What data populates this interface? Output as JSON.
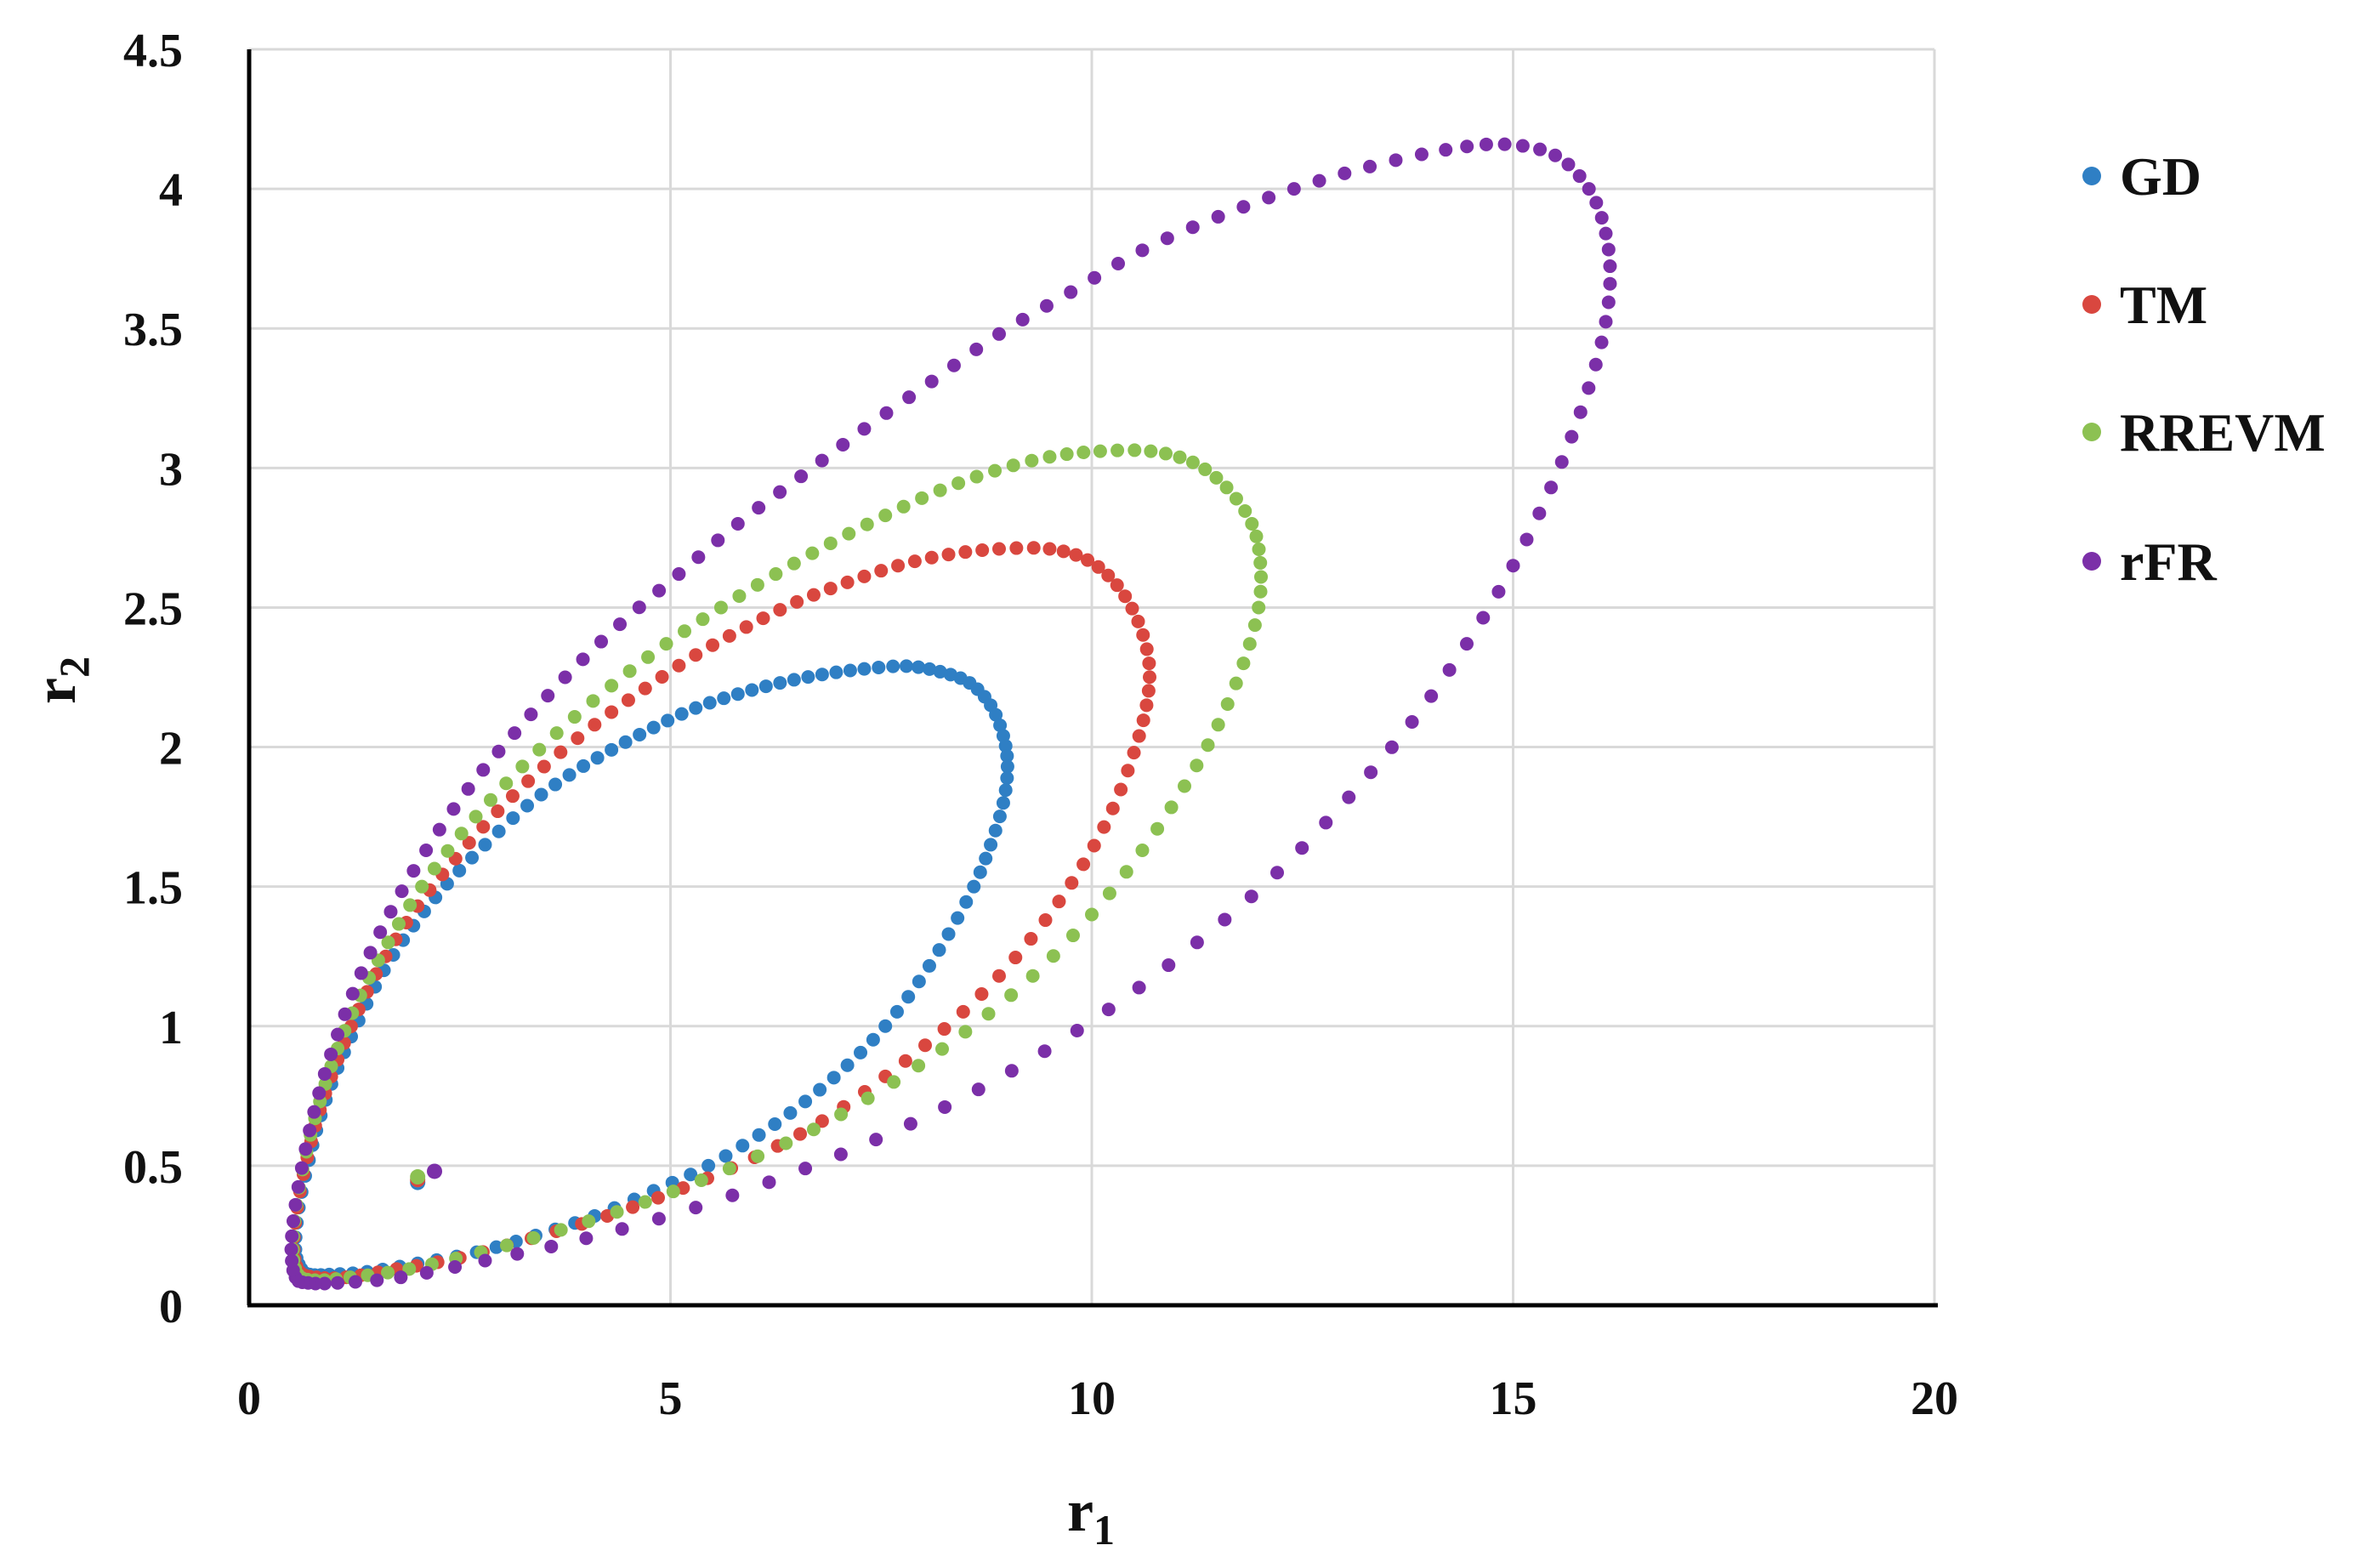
{
  "chart_data": {
    "type": "scatter",
    "title": "",
    "xlabel": {
      "main": "r",
      "sub": "1"
    },
    "ylabel": {
      "main": "r",
      "sub": "2"
    },
    "xlim": [
      0,
      20
    ],
    "ylim": [
      0,
      4.5
    ],
    "xticks": [
      "0",
      "5",
      "10",
      "15",
      "20"
    ],
    "yticks": [
      "0",
      "0.5",
      "1",
      "1.5",
      "2",
      "2.5",
      "3",
      "3.5",
      "4",
      "4.5"
    ],
    "grid": true,
    "legend_position": "right",
    "series": [
      {
        "name": "GD",
        "color": "#2f7fc4",
        "extra_point": [
          2.0,
          0.44
        ],
        "points": [
          [
            0.62,
            0.13
          ],
          [
            0.55,
            0.2
          ],
          [
            0.59,
            0.35
          ],
          [
            0.71,
            0.52
          ],
          [
            0.85,
            0.68
          ],
          [
            1.05,
            0.85
          ],
          [
            1.3,
            1.02
          ],
          [
            1.6,
            1.2
          ],
          [
            1.95,
            1.36
          ],
          [
            2.35,
            1.51
          ],
          [
            2.8,
            1.65
          ],
          [
            3.3,
            1.79
          ],
          [
            3.8,
            1.9
          ],
          [
            4.3,
            1.99
          ],
          [
            4.8,
            2.07
          ],
          [
            5.3,
            2.14
          ],
          [
            5.8,
            2.19
          ],
          [
            6.3,
            2.23
          ],
          [
            6.8,
            2.26
          ],
          [
            7.3,
            2.28
          ],
          [
            7.8,
            2.29
          ],
          [
            8.2,
            2.27
          ],
          [
            8.55,
            2.23
          ],
          [
            8.8,
            2.15
          ],
          [
            8.95,
            2.04
          ],
          [
            9.0,
            1.93
          ],
          [
            8.95,
            1.8
          ],
          [
            8.8,
            1.65
          ],
          [
            8.6,
            1.5
          ],
          [
            8.3,
            1.33
          ],
          [
            7.95,
            1.16
          ],
          [
            7.55,
            1.0
          ],
          [
            7.1,
            0.86
          ],
          [
            6.6,
            0.73
          ],
          [
            6.05,
            0.61
          ],
          [
            5.45,
            0.5
          ],
          [
            4.8,
            0.41
          ],
          [
            4.1,
            0.32
          ],
          [
            3.4,
            0.25
          ],
          [
            2.7,
            0.19
          ],
          [
            2.0,
            0.15
          ],
          [
            1.4,
            0.12
          ],
          [
            0.95,
            0.11
          ],
          [
            0.72,
            0.11
          ]
        ]
      },
      {
        "name": "TM",
        "color": "#d9473f",
        "extra_point": [
          2.0,
          0.45
        ],
        "points": [
          [
            0.6,
            0.12
          ],
          [
            0.53,
            0.2
          ],
          [
            0.57,
            0.35
          ],
          [
            0.69,
            0.53
          ],
          [
            0.84,
            0.7
          ],
          [
            1.05,
            0.88
          ],
          [
            1.3,
            1.06
          ],
          [
            1.62,
            1.25
          ],
          [
            2.0,
            1.43
          ],
          [
            2.45,
            1.6
          ],
          [
            2.95,
            1.77
          ],
          [
            3.5,
            1.93
          ],
          [
            4.1,
            2.08
          ],
          [
            4.7,
            2.21
          ],
          [
            5.3,
            2.33
          ],
          [
            5.9,
            2.43
          ],
          [
            6.5,
            2.52
          ],
          [
            7.1,
            2.59
          ],
          [
            7.7,
            2.65
          ],
          [
            8.3,
            2.69
          ],
          [
            8.9,
            2.71
          ],
          [
            9.5,
            2.71
          ],
          [
            9.95,
            2.67
          ],
          [
            10.3,
            2.58
          ],
          [
            10.55,
            2.45
          ],
          [
            10.68,
            2.3
          ],
          [
            10.65,
            2.15
          ],
          [
            10.5,
            1.98
          ],
          [
            10.25,
            1.78
          ],
          [
            9.9,
            1.58
          ],
          [
            9.45,
            1.38
          ],
          [
            8.9,
            1.18
          ],
          [
            8.25,
            0.99
          ],
          [
            7.55,
            0.82
          ],
          [
            6.8,
            0.66
          ],
          [
            6.0,
            0.53
          ],
          [
            5.15,
            0.42
          ],
          [
            4.25,
            0.32
          ],
          [
            3.35,
            0.24
          ],
          [
            2.5,
            0.17
          ],
          [
            1.75,
            0.13
          ],
          [
            1.15,
            0.1
          ],
          [
            0.8,
            0.1
          ]
        ]
      },
      {
        "name": "RREVM",
        "color": "#8cc152",
        "extra_point": [
          2.0,
          0.46
        ],
        "points": [
          [
            0.58,
            0.11
          ],
          [
            0.52,
            0.2
          ],
          [
            0.56,
            0.36
          ],
          [
            0.68,
            0.55
          ],
          [
            0.84,
            0.73
          ],
          [
            1.05,
            0.92
          ],
          [
            1.32,
            1.11
          ],
          [
            1.65,
            1.3
          ],
          [
            2.05,
            1.5
          ],
          [
            2.52,
            1.69
          ],
          [
            3.05,
            1.87
          ],
          [
            3.65,
            2.05
          ],
          [
            4.3,
            2.22
          ],
          [
            4.95,
            2.37
          ],
          [
            5.6,
            2.5
          ],
          [
            6.25,
            2.62
          ],
          [
            6.9,
            2.73
          ],
          [
            7.55,
            2.83
          ],
          [
            8.2,
            2.92
          ],
          [
            8.85,
            2.99
          ],
          [
            9.5,
            3.04
          ],
          [
            10.1,
            3.06
          ],
          [
            10.7,
            3.06
          ],
          [
            11.2,
            3.02
          ],
          [
            11.6,
            2.93
          ],
          [
            11.9,
            2.8
          ],
          [
            12.0,
            2.66
          ],
          [
            11.98,
            2.5
          ],
          [
            11.8,
            2.3
          ],
          [
            11.5,
            2.08
          ],
          [
            11.1,
            1.86
          ],
          [
            10.6,
            1.63
          ],
          [
            10.0,
            1.4
          ],
          [
            9.3,
            1.18
          ],
          [
            8.5,
            0.98
          ],
          [
            7.65,
            0.8
          ],
          [
            6.7,
            0.63
          ],
          [
            5.7,
            0.49
          ],
          [
            4.7,
            0.37
          ],
          [
            3.7,
            0.27
          ],
          [
            2.75,
            0.19
          ],
          [
            1.9,
            0.13
          ],
          [
            1.2,
            0.1
          ],
          [
            0.78,
            0.09
          ]
        ]
      },
      {
        "name": "rFR",
        "color": "#7b2fa8",
        "extra_point": [
          2.2,
          0.48
        ],
        "points": [
          [
            0.55,
            0.1
          ],
          [
            0.5,
            0.2
          ],
          [
            0.55,
            0.36
          ],
          [
            0.67,
            0.56
          ],
          [
            0.83,
            0.76
          ],
          [
            1.05,
            0.97
          ],
          [
            1.33,
            1.19
          ],
          [
            1.68,
            1.41
          ],
          [
            2.1,
            1.63
          ],
          [
            2.6,
            1.85
          ],
          [
            3.15,
            2.05
          ],
          [
            3.75,
            2.25
          ],
          [
            4.4,
            2.44
          ],
          [
            5.1,
            2.62
          ],
          [
            5.8,
            2.8
          ],
          [
            6.55,
            2.97
          ],
          [
            7.3,
            3.14
          ],
          [
            8.1,
            3.31
          ],
          [
            8.9,
            3.48
          ],
          [
            9.75,
            3.63
          ],
          [
            10.6,
            3.78
          ],
          [
            11.5,
            3.9
          ],
          [
            12.4,
            4.0
          ],
          [
            13.3,
            4.08
          ],
          [
            14.2,
            4.14
          ],
          [
            14.9,
            4.16
          ],
          [
            15.5,
            4.12
          ],
          [
            15.9,
            4.0
          ],
          [
            16.1,
            3.84
          ],
          [
            16.15,
            3.66
          ],
          [
            16.05,
            3.45
          ],
          [
            15.8,
            3.2
          ],
          [
            15.45,
            2.93
          ],
          [
            15.0,
            2.65
          ],
          [
            14.45,
            2.37
          ],
          [
            13.8,
            2.09
          ],
          [
            13.05,
            1.82
          ],
          [
            12.2,
            1.55
          ],
          [
            11.25,
            1.3
          ],
          [
            10.2,
            1.06
          ],
          [
            9.05,
            0.84
          ],
          [
            7.85,
            0.65
          ],
          [
            6.6,
            0.49
          ],
          [
            5.3,
            0.35
          ],
          [
            4.0,
            0.24
          ],
          [
            2.8,
            0.16
          ],
          [
            1.8,
            0.1
          ],
          [
            1.05,
            0.08
          ],
          [
            0.7,
            0.08
          ]
        ]
      }
    ]
  }
}
